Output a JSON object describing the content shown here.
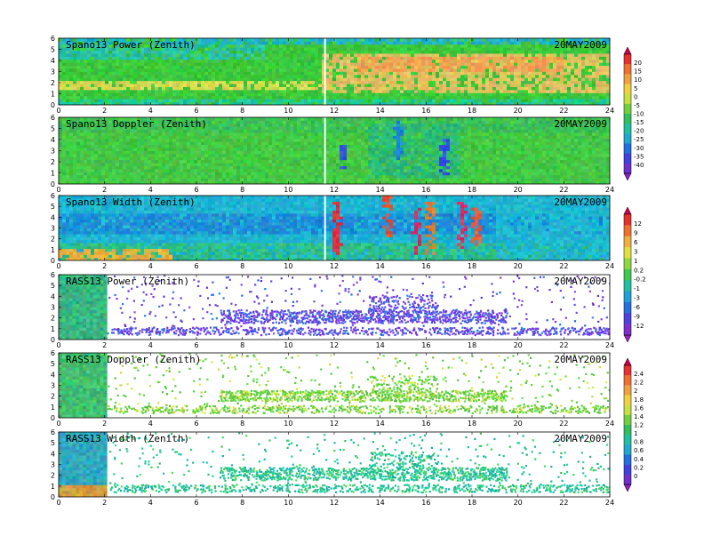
{
  "chart_data": [
    {
      "type": "heatmap",
      "title": "Spano13 Power (Zenith)",
      "date": "20MAY2009",
      "xlim": [
        0,
        24
      ],
      "ylim": [
        0,
        6
      ],
      "xticks": [
        "0",
        "2",
        "4",
        "6",
        "8",
        "10",
        "12",
        "14",
        "16",
        "18",
        "20",
        "22",
        "24"
      ],
      "yticks": [
        "0",
        "1",
        "2",
        "3",
        "4",
        "5",
        "6"
      ],
      "colorbar_group": "power_doppler",
      "base_color": "#3cc83c",
      "features": [
        {
          "kind": "band",
          "x": [
            0,
            24
          ],
          "y": [
            0.0,
            0.6
          ],
          "color": "#1ec8a0"
        },
        {
          "kind": "band",
          "x": [
            0,
            24
          ],
          "y": [
            5.4,
            6.0
          ],
          "color": "#20b4c8"
        },
        {
          "kind": "band",
          "x": [
            0,
            9
          ],
          "y": [
            4.2,
            5.4
          ],
          "color": "#28c0a8"
        },
        {
          "kind": "band",
          "x": [
            0,
            11.5
          ],
          "y": [
            1.4,
            2.2
          ],
          "color": "#d8d850"
        },
        {
          "kind": "band",
          "x": [
            11.5,
            24
          ],
          "y": [
            1.0,
            4.6
          ],
          "color": "#e0c060"
        },
        {
          "kind": "band",
          "x": [
            13,
            22
          ],
          "y": [
            3.0,
            4.4
          ],
          "color": "#f0a050"
        },
        {
          "kind": "gap",
          "x": 11.6
        }
      ]
    },
    {
      "type": "heatmap",
      "title": "Spano13 Doppler (Zenith)",
      "date": "20MAY2009",
      "xlim": [
        0,
        24
      ],
      "ylim": [
        0,
        6
      ],
      "xticks": [
        "0",
        "2",
        "4",
        "6",
        "8",
        "10",
        "12",
        "14",
        "16",
        "18",
        "20",
        "22",
        "24"
      ],
      "yticks": [
        "0",
        "1",
        "2",
        "3",
        "4",
        "5",
        "6"
      ],
      "colorbar_group": "power_doppler",
      "base_color": "#44c844",
      "features": [
        {
          "kind": "band",
          "x": [
            0,
            24
          ],
          "y": [
            4.6,
            6.0
          ],
          "color": "#3cbf5a"
        },
        {
          "kind": "band",
          "x": [
            13.5,
            17.5
          ],
          "y": [
            0.5,
            5.5
          ],
          "color": "#2ab87a"
        },
        {
          "kind": "streak",
          "x": 12.4,
          "y": [
            0.8,
            3.5
          ],
          "color": "#3050e0"
        },
        {
          "kind": "streak",
          "x": 16.8,
          "y": [
            0.8,
            4.0
          ],
          "color": "#3050e0"
        },
        {
          "kind": "streak",
          "x": 14.8,
          "y": [
            2.0,
            5.8
          ],
          "color": "#2080e0"
        },
        {
          "kind": "gap",
          "x": 11.6
        }
      ]
    },
    {
      "type": "heatmap",
      "title": "Spano13 Width (Zenith)",
      "date": "20MAY2009",
      "xlim": [
        0,
        24
      ],
      "ylim": [
        0,
        6
      ],
      "xticks": [
        "0",
        "2",
        "4",
        "6",
        "8",
        "10",
        "12",
        "14",
        "16",
        "18",
        "20",
        "22",
        "24"
      ],
      "yticks": [
        "0",
        "1",
        "2",
        "3",
        "4",
        "5",
        "6"
      ],
      "colorbar_group": "power_width",
      "base_color": "#1eb4d2",
      "features": [
        {
          "kind": "band",
          "x": [
            0,
            24
          ],
          "y": [
            2.4,
            4.4
          ],
          "color": "#1e8cd8"
        },
        {
          "kind": "band",
          "x": [
            0,
            24
          ],
          "y": [
            0.0,
            1.6
          ],
          "color": "#30c080"
        },
        {
          "kind": "band",
          "x": [
            0,
            5
          ],
          "y": [
            0.1,
            1.0
          ],
          "color": "#e8b040"
        },
        {
          "kind": "band",
          "x": [
            19,
            24
          ],
          "y": [
            0.0,
            6.0
          ],
          "color": "#20b8d0"
        },
        {
          "kind": "streak",
          "x": 12.1,
          "y": [
            0.5,
            5.8
          ],
          "color": "#e03040"
        },
        {
          "kind": "streak",
          "x": 14.3,
          "y": [
            2.0,
            5.9
          ],
          "color": "#e05030"
        },
        {
          "kind": "streak",
          "x": 15.6,
          "y": [
            0.5,
            5.0
          ],
          "color": "#d83060"
        },
        {
          "kind": "streak",
          "x": 16.2,
          "y": [
            0.5,
            5.5
          ],
          "color": "#e08030"
        },
        {
          "kind": "streak",
          "x": 17.6,
          "y": [
            1.0,
            5.5
          ],
          "color": "#d83060"
        },
        {
          "kind": "streak",
          "x": 18.2,
          "y": [
            1.5,
            5.0
          ],
          "color": "#e06040"
        },
        {
          "kind": "gap",
          "x": 11.6
        }
      ]
    },
    {
      "type": "heatmap",
      "title": "RASS13 Power (Zenith)",
      "date": "20MAY2009",
      "xlim": [
        0,
        24
      ],
      "ylim": [
        0,
        6
      ],
      "xticks": [
        "0",
        "2",
        "4",
        "6",
        "8",
        "10",
        "12",
        "14",
        "16",
        "18",
        "20",
        "22",
        "24"
      ],
      "yticks": [
        "0",
        "1",
        "2",
        "3",
        "4",
        "5",
        "6"
      ],
      "colorbar_group": "power_width",
      "block": {
        "x": [
          0,
          2.1
        ],
        "color": "#38b880"
      },
      "scatter_color": "#7040e0",
      "scatter_alt_color": "#3070e0",
      "layers": [
        {
          "x": [
            2.1,
            24
          ],
          "y": [
            0.5,
            1.2
          ],
          "density": 0.45
        },
        {
          "x": [
            7,
            19.5
          ],
          "y": [
            1.6,
            2.8
          ],
          "density": 0.6
        },
        {
          "x": [
            13.5,
            16.5
          ],
          "y": [
            2.8,
            4.2
          ],
          "density": 0.35
        },
        {
          "x": [
            2.1,
            24
          ],
          "y": [
            1.2,
            6.0
          ],
          "density": 0.03
        }
      ]
    },
    {
      "type": "heatmap",
      "title": "RASS13 Doppler (Zenith)",
      "date": "20MAY2009",
      "xlim": [
        0,
        24
      ],
      "ylim": [
        0,
        6
      ],
      "xticks": [
        "0",
        "2",
        "4",
        "6",
        "8",
        "10",
        "12",
        "14",
        "16",
        "18",
        "20",
        "22",
        "24"
      ],
      "yticks": [
        "0",
        "1",
        "2",
        "3",
        "4",
        "5",
        "6"
      ],
      "colorbar_group": "rass_width",
      "block": {
        "x": [
          0,
          2.1
        ],
        "color": "#40c070"
      },
      "scatter_color": "#60d040",
      "scatter_alt_color": "#d0e040",
      "layers": [
        {
          "x": [
            2.1,
            24
          ],
          "y": [
            0.5,
            1.2
          ],
          "density": 0.4
        },
        {
          "x": [
            7,
            19.5
          ],
          "y": [
            1.6,
            2.6
          ],
          "density": 0.6
        },
        {
          "x": [
            13.5,
            16.5
          ],
          "y": [
            2.6,
            4.0
          ],
          "density": 0.3
        },
        {
          "x": [
            2.1,
            24
          ],
          "y": [
            1.2,
            6.0
          ],
          "density": 0.03
        }
      ]
    },
    {
      "type": "heatmap",
      "title": "RASS13 Width (Zenith)",
      "date": "20MAY2009",
      "xlim": [
        0,
        24
      ],
      "ylim": [
        0,
        6
      ],
      "xticks": [
        "0",
        "2",
        "4",
        "6",
        "8",
        "10",
        "12",
        "14",
        "16",
        "18",
        "20",
        "22",
        "24"
      ],
      "yticks": [
        "0",
        "1",
        "2",
        "3",
        "4",
        "5",
        "6"
      ],
      "colorbar_group": "rass_width",
      "block": {
        "x": [
          0,
          2.1
        ],
        "color": "#30a8c0"
      },
      "scatter_color": "#20c0a0",
      "scatter_alt_color": "#40d060",
      "layers": [
        {
          "x": [
            2.1,
            24
          ],
          "y": [
            0.5,
            1.2
          ],
          "density": 0.4
        },
        {
          "x": [
            7,
            19.5
          ],
          "y": [
            1.6,
            2.8
          ],
          "density": 0.55
        },
        {
          "x": [
            13.5,
            16.5
          ],
          "y": [
            2.8,
            4.2
          ],
          "density": 0.3
        },
        {
          "x": [
            2.1,
            24
          ],
          "y": [
            1.2,
            6.0
          ],
          "density": 0.03
        }
      ]
    }
  ],
  "colorbars": [
    {
      "id": "power_doppler",
      "labels": [
        "20",
        "15",
        "10",
        "5",
        "0",
        "-5",
        "-10",
        "-15",
        "-20",
        "-25",
        "-30",
        "-35",
        "-40"
      ],
      "colors": [
        "#d00050",
        "#e83030",
        "#f07030",
        "#f0a040",
        "#f0d040",
        "#c8e040",
        "#70d040",
        "#30c060",
        "#20c0a0",
        "#20a8d0",
        "#2070e0",
        "#4040e0",
        "#7030d0",
        "#9020c0"
      ]
    },
    {
      "id": "power_width",
      "labels": [
        "12",
        "9",
        "6",
        "3",
        "1",
        "0.2",
        "-0.2",
        "-1",
        "-3",
        "-6",
        "-9",
        "-12"
      ],
      "colors": [
        "#d00050",
        "#e83030",
        "#f07030",
        "#f0b040",
        "#e0e040",
        "#90d840",
        "#40c850",
        "#20c0a0",
        "#20a0d8",
        "#2870e0",
        "#5040e0",
        "#8030d0",
        "#a020c0"
      ]
    },
    {
      "id": "rass_width",
      "labels": [
        "2.4",
        "2.2",
        "2",
        "1.8",
        "1.6",
        "1.4",
        "1.2",
        "1",
        "0.8",
        "0.6",
        "0.4",
        "0.2",
        "0"
      ],
      "colors": [
        "#d00050",
        "#e83030",
        "#f07030",
        "#f0a040",
        "#f0d040",
        "#c8e040",
        "#70d040",
        "#30c060",
        "#20c0a0",
        "#20a8d0",
        "#2070e0",
        "#4040e0",
        "#7030d0",
        "#9020c0"
      ]
    }
  ]
}
